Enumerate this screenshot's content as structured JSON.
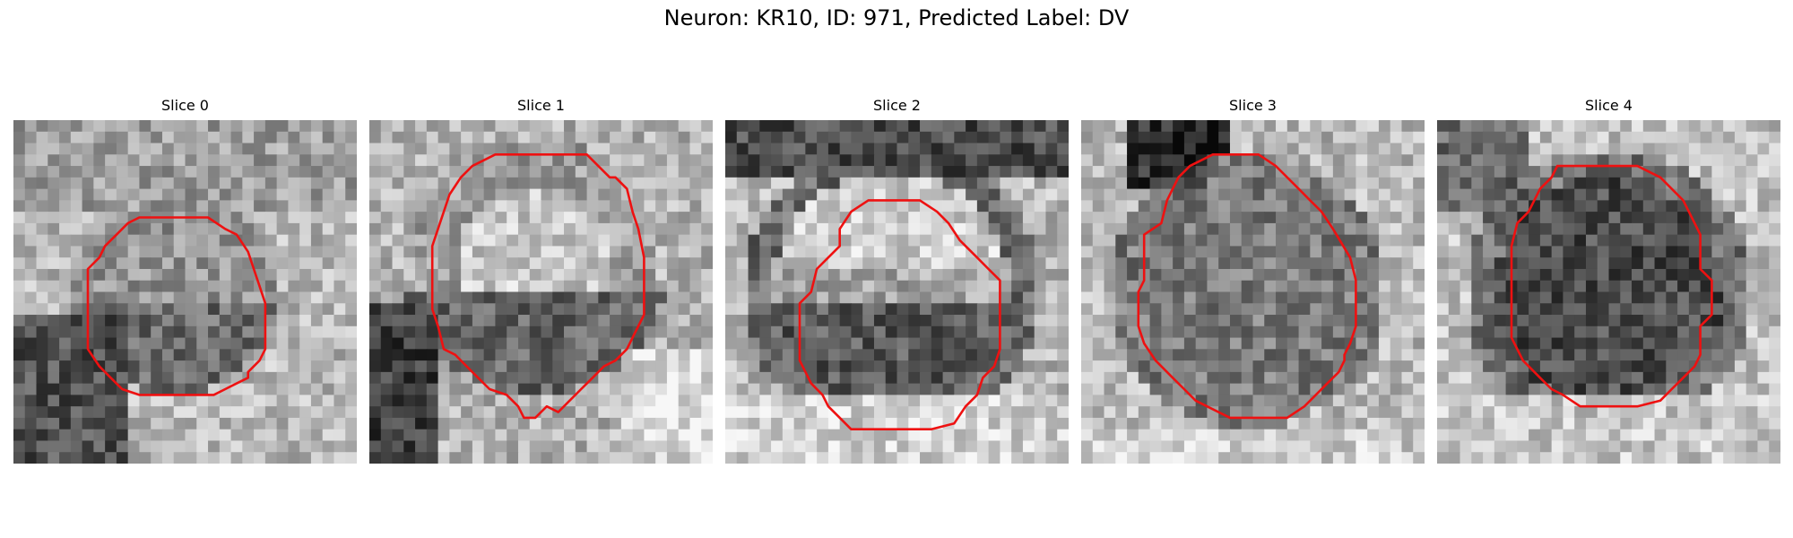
{
  "figure": {
    "title": "Neuron: KR10, ID: 971, Predicted Label: DV"
  },
  "contour_color": "#ee1111",
  "colormap": "grayscale",
  "panels": [
    {
      "title": "Slice 0",
      "description": "Noisy grayscale microscopy patch; small cell with dark speckles in lower half, darker region at lower-left."
    },
    {
      "title": "Slice 1",
      "description": "Larger bright cell body with darker lower portion, dark region at lower-left."
    },
    {
      "title": "Slice 2",
      "description": "Round cell with bright upper center and dark lower band, dark ring around it."
    },
    {
      "title": "Slice 3",
      "description": "Large medium-dark cell with very dark patch at top-left."
    },
    {
      "title": "Slice 4",
      "description": "Dark round cell body surrounded by lighter background."
    }
  ]
}
